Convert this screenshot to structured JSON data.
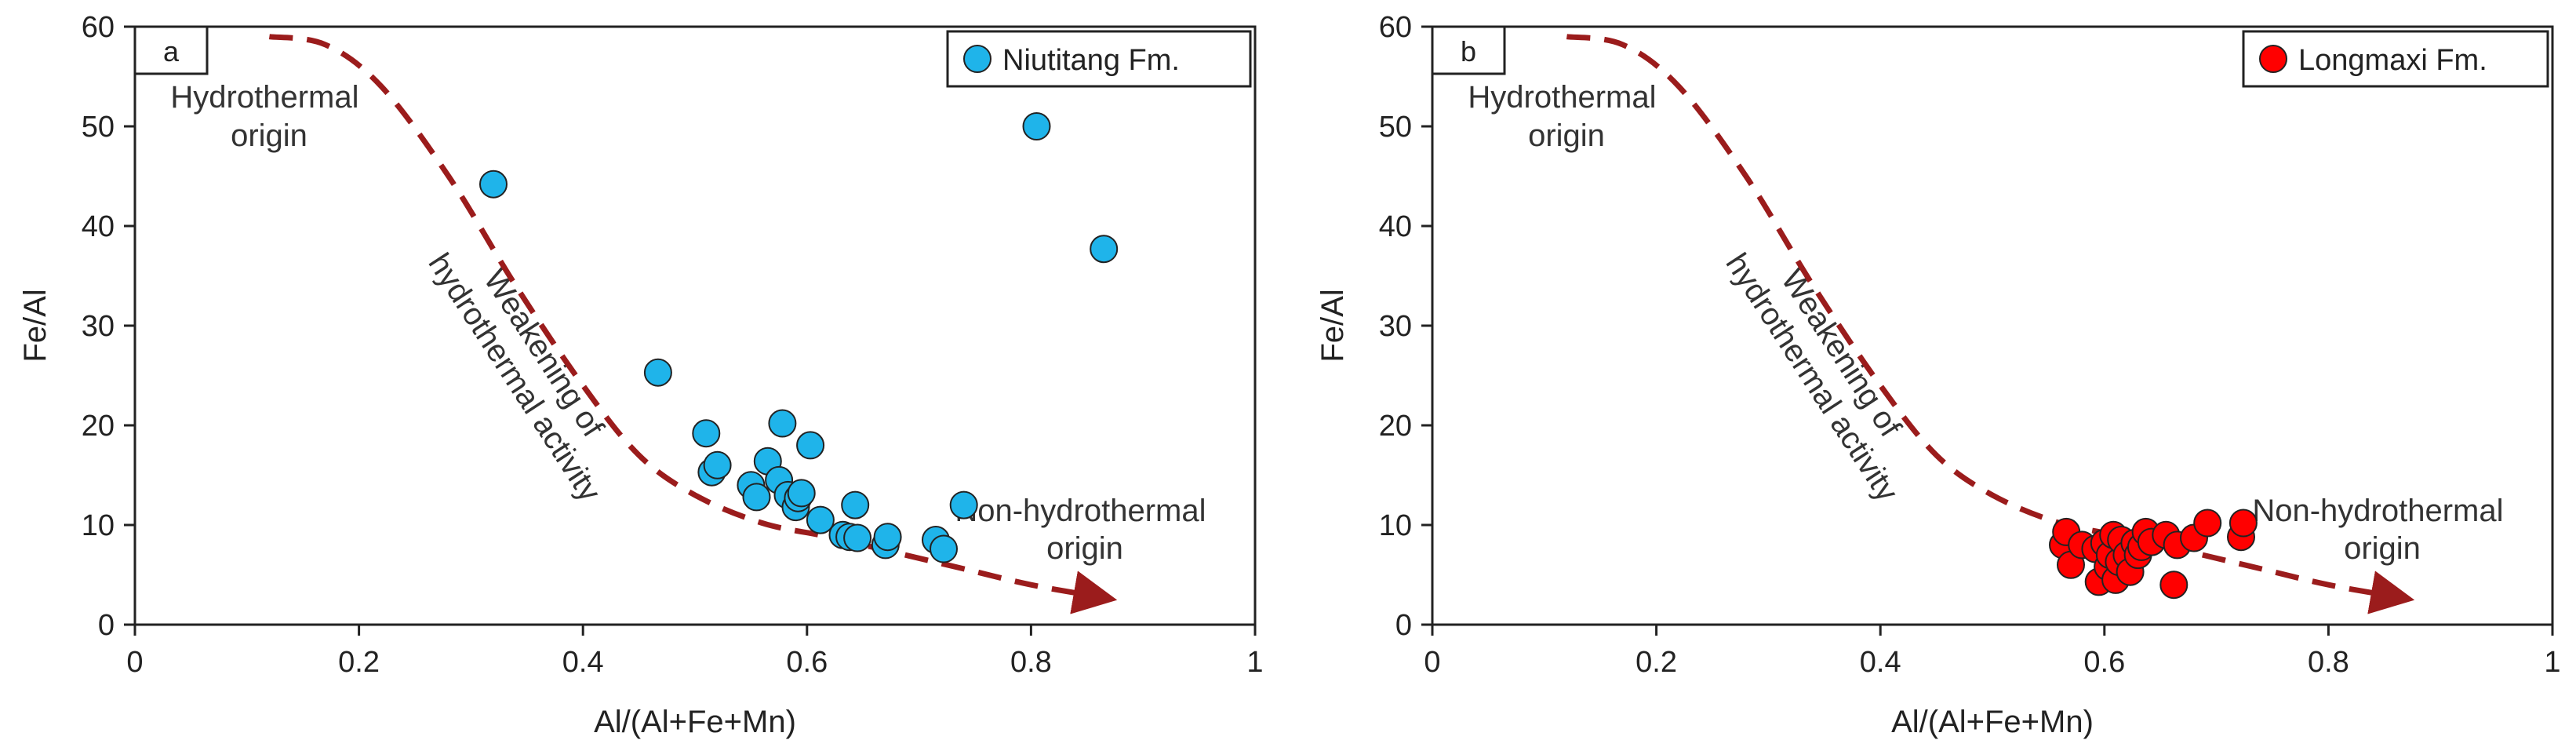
{
  "chart_data": [
    {
      "type": "scatter",
      "panel_label": "a",
      "xlabel": "Al/(Al+Fe+Mn)",
      "ylabel": "Fe/Al",
      "xlim": [
        0,
        1
      ],
      "ylim": [
        0,
        60
      ],
      "x_ticks": [
        "0",
        "0.2",
        "0.4",
        "0.6",
        "0.8",
        "1"
      ],
      "y_ticks": [
        "0",
        "10",
        "20",
        "30",
        "40",
        "50",
        "60"
      ],
      "grid": false,
      "legend_position": "top-right",
      "series": [
        {
          "name": "Niutitang Fm.",
          "color": "#1fb4ea",
          "points": [
            [
              0.32,
              44.2
            ],
            [
              0.467,
              25.3
            ],
            [
              0.51,
              19.2
            ],
            [
              0.515,
              15.3
            ],
            [
              0.52,
              16.0
            ],
            [
              0.55,
              14.0
            ],
            [
              0.555,
              12.8
            ],
            [
              0.565,
              16.4
            ],
            [
              0.578,
              20.2
            ],
            [
              0.575,
              14.5
            ],
            [
              0.583,
              13.0
            ],
            [
              0.59,
              11.8
            ],
            [
              0.592,
              12.7
            ],
            [
              0.595,
              13.2
            ],
            [
              0.603,
              18.0
            ],
            [
              0.612,
              10.5
            ],
            [
              0.632,
              9.0
            ],
            [
              0.638,
              8.8
            ],
            [
              0.643,
              12.0
            ],
            [
              0.645,
              8.7
            ],
            [
              0.67,
              8.0
            ],
            [
              0.672,
              8.8
            ],
            [
              0.715,
              8.5
            ],
            [
              0.722,
              7.6
            ],
            [
              0.74,
              12.0
            ],
            [
              0.805,
              50.0
            ],
            [
              0.865,
              37.7
            ]
          ]
        }
      ],
      "annotations": {
        "hydrothermal": [
          "Hydrothermal",
          "origin"
        ],
        "weakening": [
          "Weakening of",
          "hydrothermal activity"
        ],
        "non_hydrothermal": [
          "Non-hydrothermal",
          "origin"
        ]
      },
      "trend_arrow": {
        "color": "#9b1c1c",
        "x": [
          0.12,
          0.17,
          0.22,
          0.28,
          0.34,
          0.4,
          0.45,
          0.5,
          0.56,
          0.62,
          0.68,
          0.74,
          0.8,
          0.86
        ],
        "y": [
          59,
          58.2,
          54,
          45,
          34,
          24,
          17,
          13,
          10.2,
          8.8,
          7.2,
          5.6,
          4.0,
          2.8
        ]
      }
    },
    {
      "type": "scatter",
      "panel_label": "b",
      "xlabel": "Al/(Al+Fe+Mn)",
      "ylabel": "Fe/Al",
      "xlim": [
        0,
        1
      ],
      "ylim": [
        0,
        60
      ],
      "x_ticks": [
        "0",
        "0.2",
        "0.4",
        "0.6",
        "0.8",
        "1"
      ],
      "y_ticks": [
        "0",
        "10",
        "20",
        "30",
        "40",
        "50",
        "60"
      ],
      "grid": false,
      "legend_position": "top-right",
      "series": [
        {
          "name": "Longmaxi Fm.",
          "color": "#ff0000",
          "points": [
            [
              0.563,
              8.0
            ],
            [
              0.566,
              9.3
            ],
            [
              0.57,
              6.0
            ],
            [
              0.58,
              8.0
            ],
            [
              0.592,
              7.6
            ],
            [
              0.595,
              4.3
            ],
            [
              0.6,
              8.2
            ],
            [
              0.603,
              5.8
            ],
            [
              0.605,
              7.0
            ],
            [
              0.608,
              9.0
            ],
            [
              0.61,
              4.5
            ],
            [
              0.613,
              6.3
            ],
            [
              0.615,
              8.5
            ],
            [
              0.62,
              7.0
            ],
            [
              0.623,
              5.3
            ],
            [
              0.627,
              8.2
            ],
            [
              0.63,
              7.0
            ],
            [
              0.633,
              7.8
            ],
            [
              0.637,
              9.3
            ],
            [
              0.642,
              8.3
            ],
            [
              0.655,
              9.0
            ],
            [
              0.662,
              4.0
            ],
            [
              0.665,
              8.0
            ],
            [
              0.68,
              8.7
            ],
            [
              0.692,
              10.2
            ],
            [
              0.722,
              8.8
            ],
            [
              0.724,
              10.2
            ]
          ]
        }
      ],
      "annotations": {
        "hydrothermal": [
          "Hydrothermal",
          "origin"
        ],
        "weakening": [
          "Weakening of",
          "hydrothermal activity"
        ],
        "non_hydrothermal": [
          "Non-hydrothermal",
          "origin"
        ]
      },
      "trend_arrow": {
        "color": "#9b1c1c",
        "x": [
          0.12,
          0.17,
          0.22,
          0.28,
          0.34,
          0.4,
          0.45,
          0.5,
          0.56,
          0.62,
          0.68,
          0.74,
          0.8,
          0.86
        ],
        "y": [
          59,
          58.2,
          54,
          45,
          34,
          24,
          17,
          13,
          10.2,
          8.8,
          7.2,
          5.6,
          4.0,
          2.8
        ]
      }
    }
  ]
}
